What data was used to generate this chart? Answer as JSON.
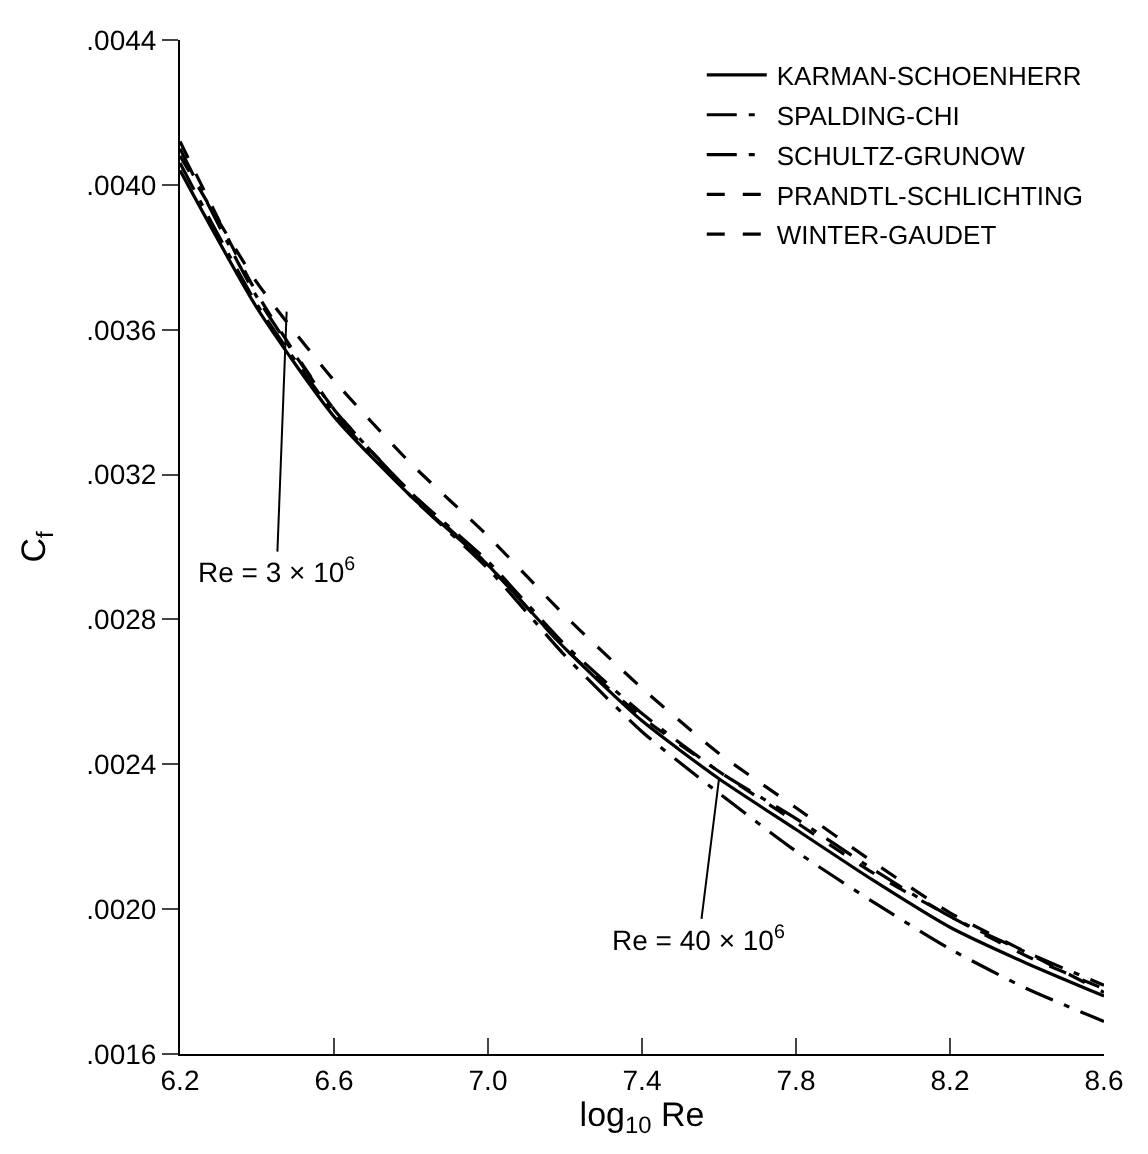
{
  "chart_data": {
    "type": "line",
    "xlabel": "log$_{10}$ Re",
    "ylabel": "C$_{f}$",
    "x": [
      6.2,
      6.4,
      6.6,
      6.8,
      7.0,
      7.2,
      7.4,
      7.6,
      7.8,
      8.0,
      8.2,
      8.4,
      8.6
    ],
    "series": [
      {
        "name": "KARMAN-SCHOENHERR",
        "color": "#000000",
        "line_style": "solid",
        "values": [
          0.00404,
          0.00366,
          0.00336,
          0.00314,
          0.00295,
          0.00272,
          0.00252,
          0.00236,
          0.00222,
          0.00208,
          0.00195,
          0.00185,
          0.00176
        ]
      },
      {
        "name": "SPALDING-CHI",
        "color": "#000000",
        "line_style": "dashdot",
        "values": [
          0.00406,
          0.00367,
          0.00337,
          0.00314,
          0.00294,
          0.0027,
          0.00249,
          0.00232,
          0.00216,
          0.00202,
          0.00189,
          0.00178,
          0.00169
        ]
      },
      {
        "name": "SCHULTZ-GRUNOW",
        "color": "#000000",
        "line_style": "dashdot",
        "values": [
          0.0041,
          0.00369,
          0.00338,
          0.00315,
          0.00296,
          0.00273,
          0.00254,
          0.00238,
          0.00225,
          0.00211,
          0.00198,
          0.00188,
          0.00179
        ]
      },
      {
        "name": "PRANDTL-SCHLICHTING",
        "color": "#000000",
        "line_style": "dashed",
        "values": [
          0.00412,
          0.0037,
          0.00338,
          0.00315,
          0.00295,
          0.00272,
          0.00253,
          0.00238,
          0.00224,
          0.0021,
          0.00198,
          0.00187,
          0.00178
        ]
      },
      {
        "name": "WINTER-GAUDET",
        "color": "#000000",
        "line_style": "dashed",
        "values": [
          0.00408,
          0.00373,
          0.00346,
          0.00323,
          0.00303,
          0.00281,
          0.00261,
          0.00243,
          0.00228,
          0.00213,
          0.00199,
          0.00188,
          0.00177
        ]
      }
    ],
    "xlim": [
      6.2,
      8.6
    ],
    "xticks": [
      6.2,
      6.6,
      {
        "value": 7.0,
        "label": "7.0"
      },
      7.4,
      7.8,
      8.2,
      8.6
    ],
    "ylim": [
      0.0016,
      0.0044
    ],
    "yticks": [
      {
        "value": 0.0016,
        "label": ".0016"
      },
      {
        "value": 0.002,
        "label": ".0020"
      },
      {
        "value": 0.0024,
        "label": ".0024"
      },
      {
        "value": 0.0028,
        "label": ".0028"
      },
      {
        "value": 0.0032,
        "label": ".0032"
      },
      {
        "value": 0.0036,
        "label": ".0036"
      },
      {
        "value": 0.004,
        "label": ".0040"
      },
      {
        "value": 0.0044,
        "label": ".0044"
      }
    ],
    "annotations": [
      {
        "text": "Re = 3 × 10$^{6}$",
        "x": 6.477,
        "y": 0.00365
      },
      {
        "text": "Re = 40 × 10$^{6}$",
        "x": 7.6,
        "y": 0.00236
      }
    ],
    "legend": "top right",
    "marker": "none"
  }
}
